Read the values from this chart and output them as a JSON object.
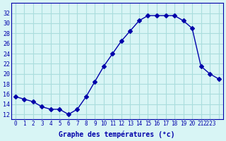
{
  "hours": [
    0,
    1,
    2,
    3,
    4,
    5,
    6,
    7,
    8,
    9,
    10,
    11,
    12,
    13,
    14,
    15,
    16,
    17,
    18,
    19,
    20,
    21,
    22,
    23
  ],
  "temps": [
    15.5,
    15.0,
    14.5,
    13.5,
    13.0,
    13.0,
    12.0,
    13.0,
    15.5,
    18.5,
    21.5,
    24.0,
    26.5,
    28.5,
    30.5,
    31.5,
    31.5,
    31.5,
    31.5,
    30.5,
    29.0,
    21.5,
    20.0,
    19.0
  ],
  "line_color": "#0000aa",
  "marker": "D",
  "marker_size": 3,
  "bg_color": "#d8f5f5",
  "grid_color": "#aadddd",
  "xlabel": "Graphe des températures (°c)",
  "xlabel_color": "#0000aa",
  "tick_color": "#0000aa",
  "ylim": [
    11,
    34
  ],
  "yticks": [
    12,
    14,
    16,
    18,
    20,
    22,
    24,
    26,
    28,
    30,
    32
  ],
  "xlim": [
    -0.5,
    23.5
  ],
  "xticks": [
    0,
    1,
    2,
    3,
    4,
    5,
    6,
    7,
    8,
    9,
    10,
    11,
    12,
    13,
    14,
    15,
    16,
    17,
    18,
    19,
    20,
    21,
    22,
    23
  ],
  "xtick_labels": [
    "0",
    "1",
    "2",
    "3",
    "4",
    "5",
    "6",
    "7",
    "8",
    "9",
    "10",
    "11",
    "12",
    "13",
    "14",
    "15",
    "16",
    "17",
    "18",
    "19",
    "20",
    "21",
    "2223",
    ""
  ]
}
